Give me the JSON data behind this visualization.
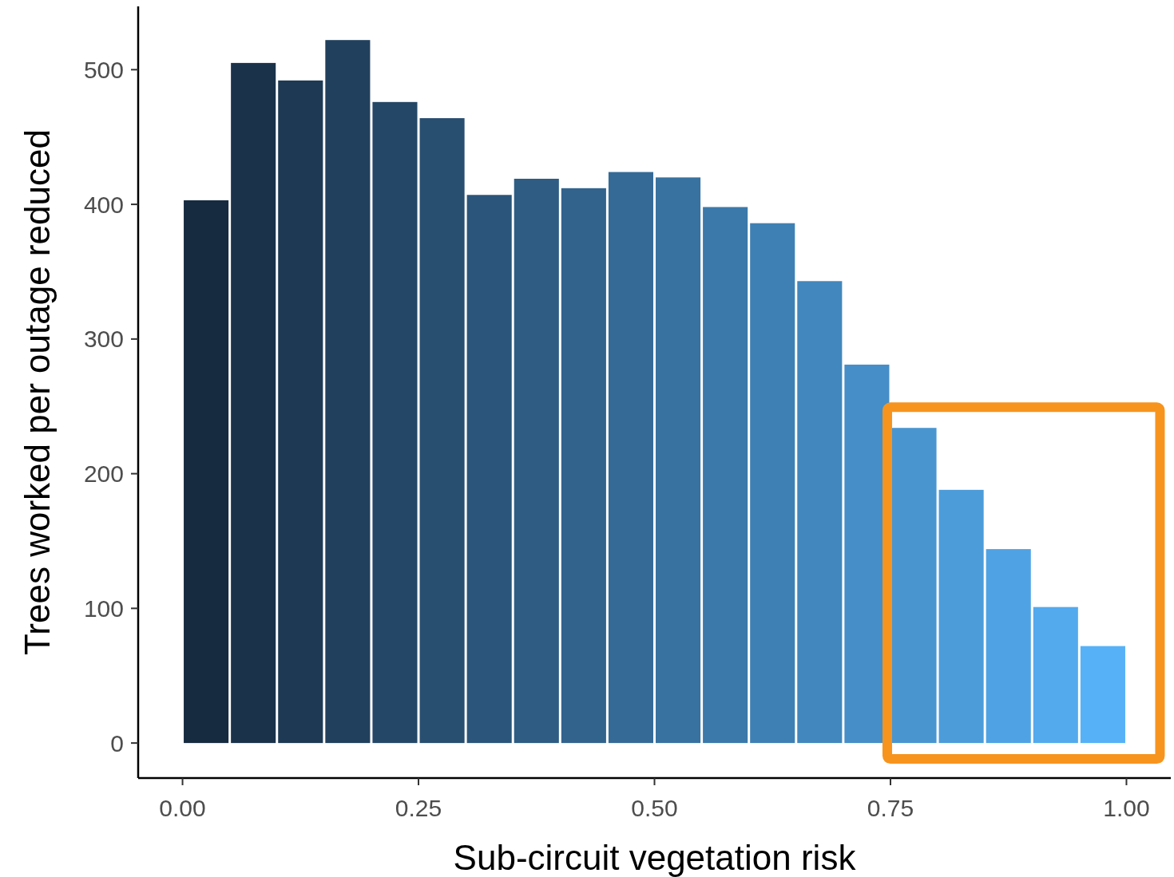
{
  "chart_data": {
    "type": "histogram",
    "xlabel": "Sub-circuit vegetation risk",
    "ylabel": "Trees worked per outage reduced",
    "bins": [
      0,
      0.05,
      0.1,
      0.15,
      0.2,
      0.25,
      0.3,
      0.35,
      0.4,
      0.45,
      0.5,
      0.55,
      0.6,
      0.65,
      0.7,
      0.75,
      0.8,
      0.85,
      0.9,
      0.95,
      1
    ],
    "values": [
      403,
      505,
      492,
      522,
      476,
      464,
      407,
      419,
      412,
      424,
      420,
      398,
      386,
      343,
      281,
      234,
      188,
      144,
      101,
      72
    ],
    "colors": [
      "#172b40",
      "#1a324a",
      "#1e3953",
      "#21405d",
      "#244767",
      "#284e70",
      "#2b557a",
      "#2e5c83",
      "#32638d",
      "#356a97",
      "#3872a0",
      "#3b79aa",
      "#3f80b4",
      "#4287bd",
      "#458ec7",
      "#4995d0",
      "#4c9cda",
      "#4fa3e4",
      "#53aaed",
      "#56b1f7"
    ],
    "xlim": [
      -0.047,
      1.047
    ],
    "ylim": [
      -26,
      547
    ],
    "xticks": [
      {
        "value": 0,
        "label": "0.00"
      },
      {
        "value": 0.25,
        "label": "0.25"
      },
      {
        "value": 0.5,
        "label": "0.50"
      },
      {
        "value": 0.75,
        "label": "0.75"
      },
      {
        "value": 1,
        "label": "1.00"
      }
    ],
    "yticks": [
      0,
      100,
      200,
      300,
      400,
      500
    ]
  }
}
